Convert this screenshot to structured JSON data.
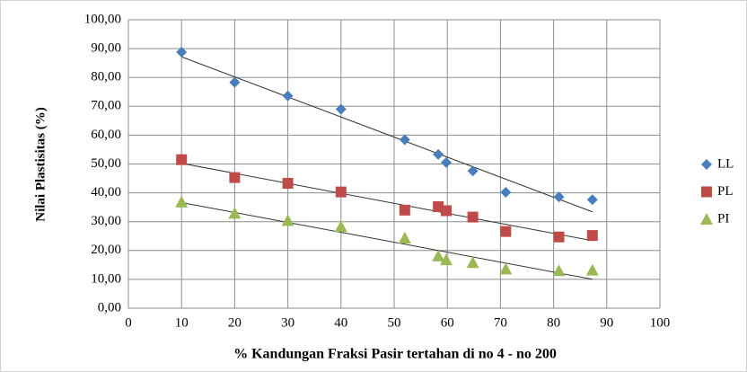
{
  "chart_data": {
    "type": "scatter",
    "x_label": "% Kandungan Fraksi Pasir tertahan di no 4 - no 200",
    "y_label": "Nilai Plastisitas (%)",
    "xlim": [
      0,
      100
    ],
    "xticks": [
      0,
      10,
      20,
      30,
      40,
      50,
      60,
      70,
      80,
      90,
      100
    ],
    "ylim": [
      0,
      100
    ],
    "yticks": [
      {
        "value": 0,
        "label": "0,00"
      },
      {
        "value": 10,
        "label": "10,00"
      },
      {
        "value": 20,
        "label": "20,00"
      },
      {
        "value": 30,
        "label": "30,00"
      },
      {
        "value": 40,
        "label": "40,00"
      },
      {
        "value": 50,
        "label": "50,00"
      },
      {
        "value": 60,
        "label": "60,00"
      },
      {
        "value": 70,
        "label": "70,00"
      },
      {
        "value": 80,
        "label": "80,00"
      },
      {
        "value": 90,
        "label": "90,00"
      },
      {
        "value": 100,
        "label": "100,00"
      }
    ],
    "grid": true,
    "legend": "right",
    "trendline": true,
    "series": [
      {
        "name": "LL",
        "color": "#4a7ebb",
        "marker": "diamond",
        "x": [
          10,
          20,
          30,
          40,
          52,
          58.3,
          59.8,
          64.8,
          71,
          81,
          87.3
        ],
        "values": [
          88.8,
          78.3,
          73.6,
          69,
          58.4,
          53.3,
          50.5,
          47.6,
          40.2,
          38.6,
          37.6
        ]
      },
      {
        "name": "PL",
        "color": "#be4b48",
        "marker": "square",
        "x": [
          10,
          20,
          30,
          40,
          52,
          58.3,
          59.8,
          64.8,
          71,
          81,
          87.3
        ],
        "values": [
          51.5,
          45.3,
          43.3,
          40.3,
          34,
          35.2,
          33.8,
          31.6,
          26.6,
          24.7,
          25.2
        ]
      },
      {
        "name": "PI",
        "color": "#98b954",
        "marker": "triangle",
        "x": [
          10,
          20,
          30,
          40,
          52,
          58.3,
          59.8,
          64.8,
          71,
          81,
          87.3
        ],
        "values": [
          36.8,
          32.9,
          30.4,
          28.3,
          24.3,
          18.1,
          16.8,
          15.8,
          13.6,
          13,
          13.2
        ]
      }
    ]
  }
}
